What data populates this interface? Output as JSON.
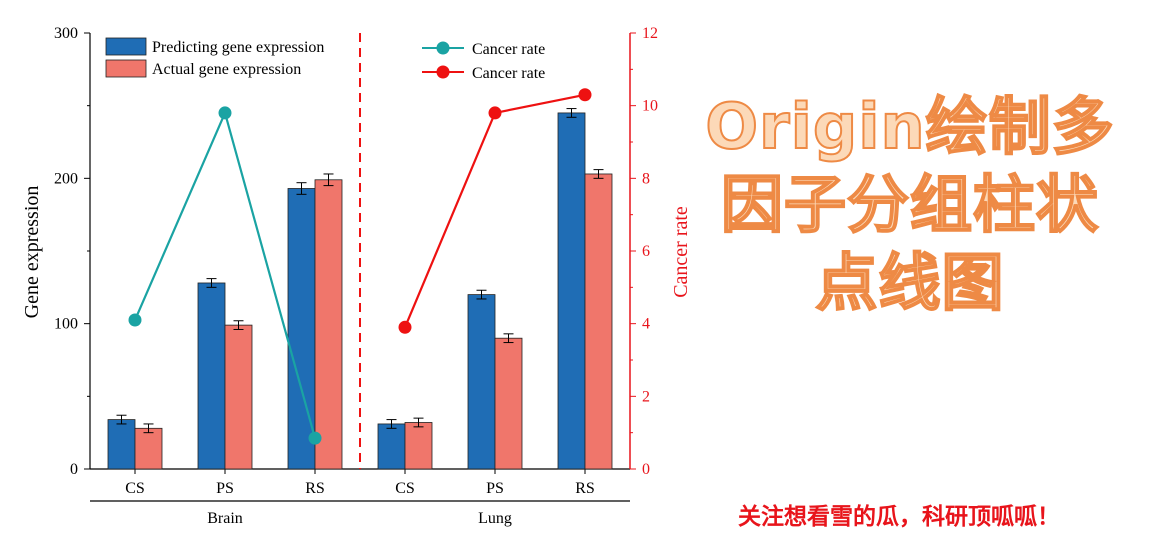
{
  "chart_data": {
    "type": "bar",
    "groups": [
      {
        "name": "Brain",
        "categories": [
          "CS",
          "PS",
          "RS"
        ]
      },
      {
        "name": "Lung",
        "categories": [
          "CS",
          "PS",
          "RS"
        ]
      }
    ],
    "series": [
      {
        "name": "Predicting gene expression",
        "type": "bar",
        "axis": "left",
        "color": "#1f6db5",
        "values": [
          34,
          128,
          193,
          31,
          120,
          245
        ],
        "errors": [
          3,
          3,
          4,
          3,
          3,
          3
        ]
      },
      {
        "name": "Actual gene expression",
        "type": "bar",
        "axis": "left",
        "color": "#f0766b",
        "values": [
          28,
          99,
          199,
          32,
          90,
          203
        ],
        "errors": [
          3,
          3,
          4,
          3,
          3,
          3
        ]
      },
      {
        "name": "Cancer rate",
        "type": "line",
        "axis": "right",
        "group": "Brain",
        "color": "#1aa3a3",
        "values": [
          4.1,
          9.8,
          0.85
        ]
      },
      {
        "name": "Cancer rate",
        "type": "line",
        "axis": "right",
        "group": "Lung",
        "color": "#ee1111",
        "values": [
          3.9,
          9.8,
          10.3
        ]
      }
    ],
    "ylabel": "Gene expression",
    "ylim": [
      0,
      300
    ],
    "yticks": [
      0,
      100,
      200,
      300
    ],
    "y2label": "Cancer rate",
    "y2lim": [
      0,
      12
    ],
    "y2ticks": [
      0,
      2,
      4,
      6,
      8,
      10,
      12
    ],
    "y2color": "#e8141b",
    "grid": false,
    "legend_placement": "top"
  },
  "banner": {
    "lines": [
      "Origin绘制多",
      "因子分组柱状",
      "点线图"
    ]
  },
  "footer": {
    "text": "关注想看雪的瓜，科研顶呱呱！"
  }
}
